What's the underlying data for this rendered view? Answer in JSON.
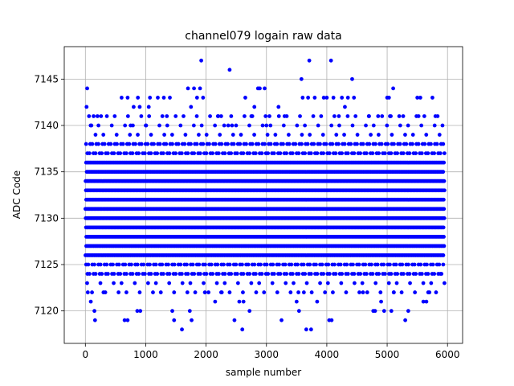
{
  "chart_data": {
    "type": "scatter",
    "title": "channel079 logain raw data",
    "xlabel": "sample number",
    "ylabel": "ADC Code",
    "xlim": [
      -350,
      6250
    ],
    "ylim": [
      7116.5,
      7148.5
    ],
    "xticks": [
      0,
      1000,
      2000,
      3000,
      4000,
      5000,
      6000
    ],
    "yticks": [
      7120,
      7125,
      7130,
      7135,
      7140,
      7145
    ],
    "grid": true,
    "marker_color": "#0000ff",
    "n_samples": 5950,
    "series": [
      {
        "name": "",
        "core_levels": [
          7124,
          7125,
          7126,
          7127,
          7128,
          7129,
          7130,
          7131,
          7132,
          7133,
          7134,
          7135,
          7136,
          7137,
          7138
        ],
        "outliers": [
          {
            "x": 30,
            "y": 7144
          },
          {
            "x": 20,
            "y": 7142
          },
          {
            "x": 60,
            "y": 7141
          },
          {
            "x": 100,
            "y": 7140
          },
          {
            "x": 40,
            "y": 7122
          },
          {
            "x": 90,
            "y": 7121
          },
          {
            "x": 150,
            "y": 7120
          },
          {
            "x": 160,
            "y": 7119
          },
          {
            "x": 200,
            "y": 7141
          },
          {
            "x": 260,
            "y": 7141
          },
          {
            "x": 300,
            "y": 7122
          },
          {
            "x": 600,
            "y": 7143
          },
          {
            "x": 700,
            "y": 7143
          },
          {
            "x": 650,
            "y": 7119
          },
          {
            "x": 700,
            "y": 7119
          },
          {
            "x": 750,
            "y": 7140
          },
          {
            "x": 800,
            "y": 7142
          },
          {
            "x": 870,
            "y": 7143
          },
          {
            "x": 900,
            "y": 7142
          },
          {
            "x": 860,
            "y": 7120
          },
          {
            "x": 910,
            "y": 7120
          },
          {
            "x": 1000,
            "y": 7140
          },
          {
            "x": 1050,
            "y": 7142
          },
          {
            "x": 1070,
            "y": 7143
          },
          {
            "x": 1200,
            "y": 7143
          },
          {
            "x": 1300,
            "y": 7143
          },
          {
            "x": 1400,
            "y": 7143
          },
          {
            "x": 1350,
            "y": 7141
          },
          {
            "x": 1440,
            "y": 7120
          },
          {
            "x": 1470,
            "y": 7119
          },
          {
            "x": 1600,
            "y": 7118
          },
          {
            "x": 1700,
            "y": 7144
          },
          {
            "x": 1750,
            "y": 7142
          },
          {
            "x": 1800,
            "y": 7144
          },
          {
            "x": 1850,
            "y": 7143
          },
          {
            "x": 1900,
            "y": 7144
          },
          {
            "x": 1920,
            "y": 7147
          },
          {
            "x": 1950,
            "y": 7143
          },
          {
            "x": 1730,
            "y": 7120
          },
          {
            "x": 1760,
            "y": 7119
          },
          {
            "x": 1980,
            "y": 7122
          },
          {
            "x": 2200,
            "y": 7141
          },
          {
            "x": 2250,
            "y": 7141
          },
          {
            "x": 2300,
            "y": 7140
          },
          {
            "x": 2150,
            "y": 7121
          },
          {
            "x": 2250,
            "y": 7122
          },
          {
            "x": 2390,
            "y": 7146
          },
          {
            "x": 2430,
            "y": 7140
          },
          {
            "x": 2470,
            "y": 7119
          },
          {
            "x": 2550,
            "y": 7121
          },
          {
            "x": 2600,
            "y": 7118
          },
          {
            "x": 2620,
            "y": 7121
          },
          {
            "x": 2650,
            "y": 7143
          },
          {
            "x": 2750,
            "y": 7141
          },
          {
            "x": 2800,
            "y": 7142
          },
          {
            "x": 2860,
            "y": 7144
          },
          {
            "x": 2890,
            "y": 7144
          },
          {
            "x": 2720,
            "y": 7120
          },
          {
            "x": 2970,
            "y": 7144
          },
          {
            "x": 3000,
            "y": 7140
          },
          {
            "x": 3050,
            "y": 7141
          },
          {
            "x": 3200,
            "y": 7142
          },
          {
            "x": 3250,
            "y": 7119
          },
          {
            "x": 3300,
            "y": 7141
          },
          {
            "x": 3500,
            "y": 7121
          },
          {
            "x": 3540,
            "y": 7120
          },
          {
            "x": 3580,
            "y": 7145
          },
          {
            "x": 3600,
            "y": 7143
          },
          {
            "x": 3620,
            "y": 7122
          },
          {
            "x": 3660,
            "y": 7118
          },
          {
            "x": 3690,
            "y": 7143
          },
          {
            "x": 3710,
            "y": 7147
          },
          {
            "x": 3740,
            "y": 7118
          },
          {
            "x": 3800,
            "y": 7143
          },
          {
            "x": 3840,
            "y": 7121
          },
          {
            "x": 3950,
            "y": 7143
          },
          {
            "x": 4000,
            "y": 7143
          },
          {
            "x": 4040,
            "y": 7119
          },
          {
            "x": 4070,
            "y": 7147
          },
          {
            "x": 4080,
            "y": 7119
          },
          {
            "x": 4110,
            "y": 7143
          },
          {
            "x": 4200,
            "y": 7141
          },
          {
            "x": 4250,
            "y": 7143
          },
          {
            "x": 4300,
            "y": 7142
          },
          {
            "x": 4350,
            "y": 7143
          },
          {
            "x": 4420,
            "y": 7145
          },
          {
            "x": 4450,
            "y": 7143
          },
          {
            "x": 4600,
            "y": 7122
          },
          {
            "x": 4700,
            "y": 7141
          },
          {
            "x": 4770,
            "y": 7120
          },
          {
            "x": 4800,
            "y": 7120
          },
          {
            "x": 4850,
            "y": 7141
          },
          {
            "x": 4900,
            "y": 7121
          },
          {
            "x": 4950,
            "y": 7120
          },
          {
            "x": 5000,
            "y": 7143
          },
          {
            "x": 5030,
            "y": 7143
          },
          {
            "x": 5060,
            "y": 7141
          },
          {
            "x": 5100,
            "y": 7144
          },
          {
            "x": 5070,
            "y": 7120
          },
          {
            "x": 5110,
            "y": 7122
          },
          {
            "x": 5200,
            "y": 7141
          },
          {
            "x": 5300,
            "y": 7119
          },
          {
            "x": 5350,
            "y": 7120
          },
          {
            "x": 5500,
            "y": 7143
          },
          {
            "x": 5520,
            "y": 7141
          },
          {
            "x": 5550,
            "y": 7143
          },
          {
            "x": 5600,
            "y": 7121
          },
          {
            "x": 5650,
            "y": 7121
          },
          {
            "x": 5750,
            "y": 7143
          },
          {
            "x": 5700,
            "y": 7122
          },
          {
            "x": 5800,
            "y": 7141
          },
          {
            "x": 5900,
            "y": 7124
          }
        ]
      }
    ]
  }
}
